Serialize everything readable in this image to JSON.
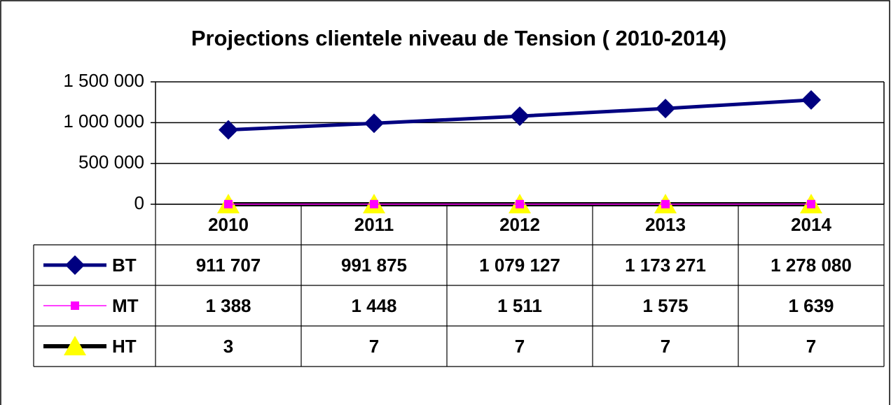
{
  "chart_data": {
    "type": "line",
    "title": "Projections clientele niveau de Tension ( 2010-2014)",
    "categories": [
      "2010",
      "2011",
      "2012",
      "2013",
      "2014"
    ],
    "series": [
      {
        "name": "BT",
        "color": "#000080",
        "marker": "diamond",
        "values": [
          911707,
          991875,
          1079127,
          1173271,
          1278080
        ],
        "value_labels": [
          "911 707",
          "991 875",
          "1 079 127",
          "1 173 271",
          "1 278 080"
        ]
      },
      {
        "name": "MT",
        "color": "#ff00ff",
        "marker": "square",
        "values": [
          1388,
          1448,
          1511,
          1575,
          1639
        ],
        "value_labels": [
          "1 388",
          "1 448",
          "1 511",
          "1 575",
          "1 639"
        ]
      },
      {
        "name": "HT",
        "color": "#000000",
        "marker_color": "#ffff00",
        "marker": "triangle",
        "values": [
          3,
          7,
          7,
          7,
          7
        ]
      }
    ],
    "ylim": [
      0,
      1500000
    ],
    "yticks": [
      0,
      {
        "value": 500000,
        "label": "500 000"
      },
      {
        "value": 1000000,
        "label": "1 000 000"
      },
      {
        "value": 1500000,
        "label": "1 500 000"
      }
    ],
    "grid": true,
    "data_table": true
  }
}
